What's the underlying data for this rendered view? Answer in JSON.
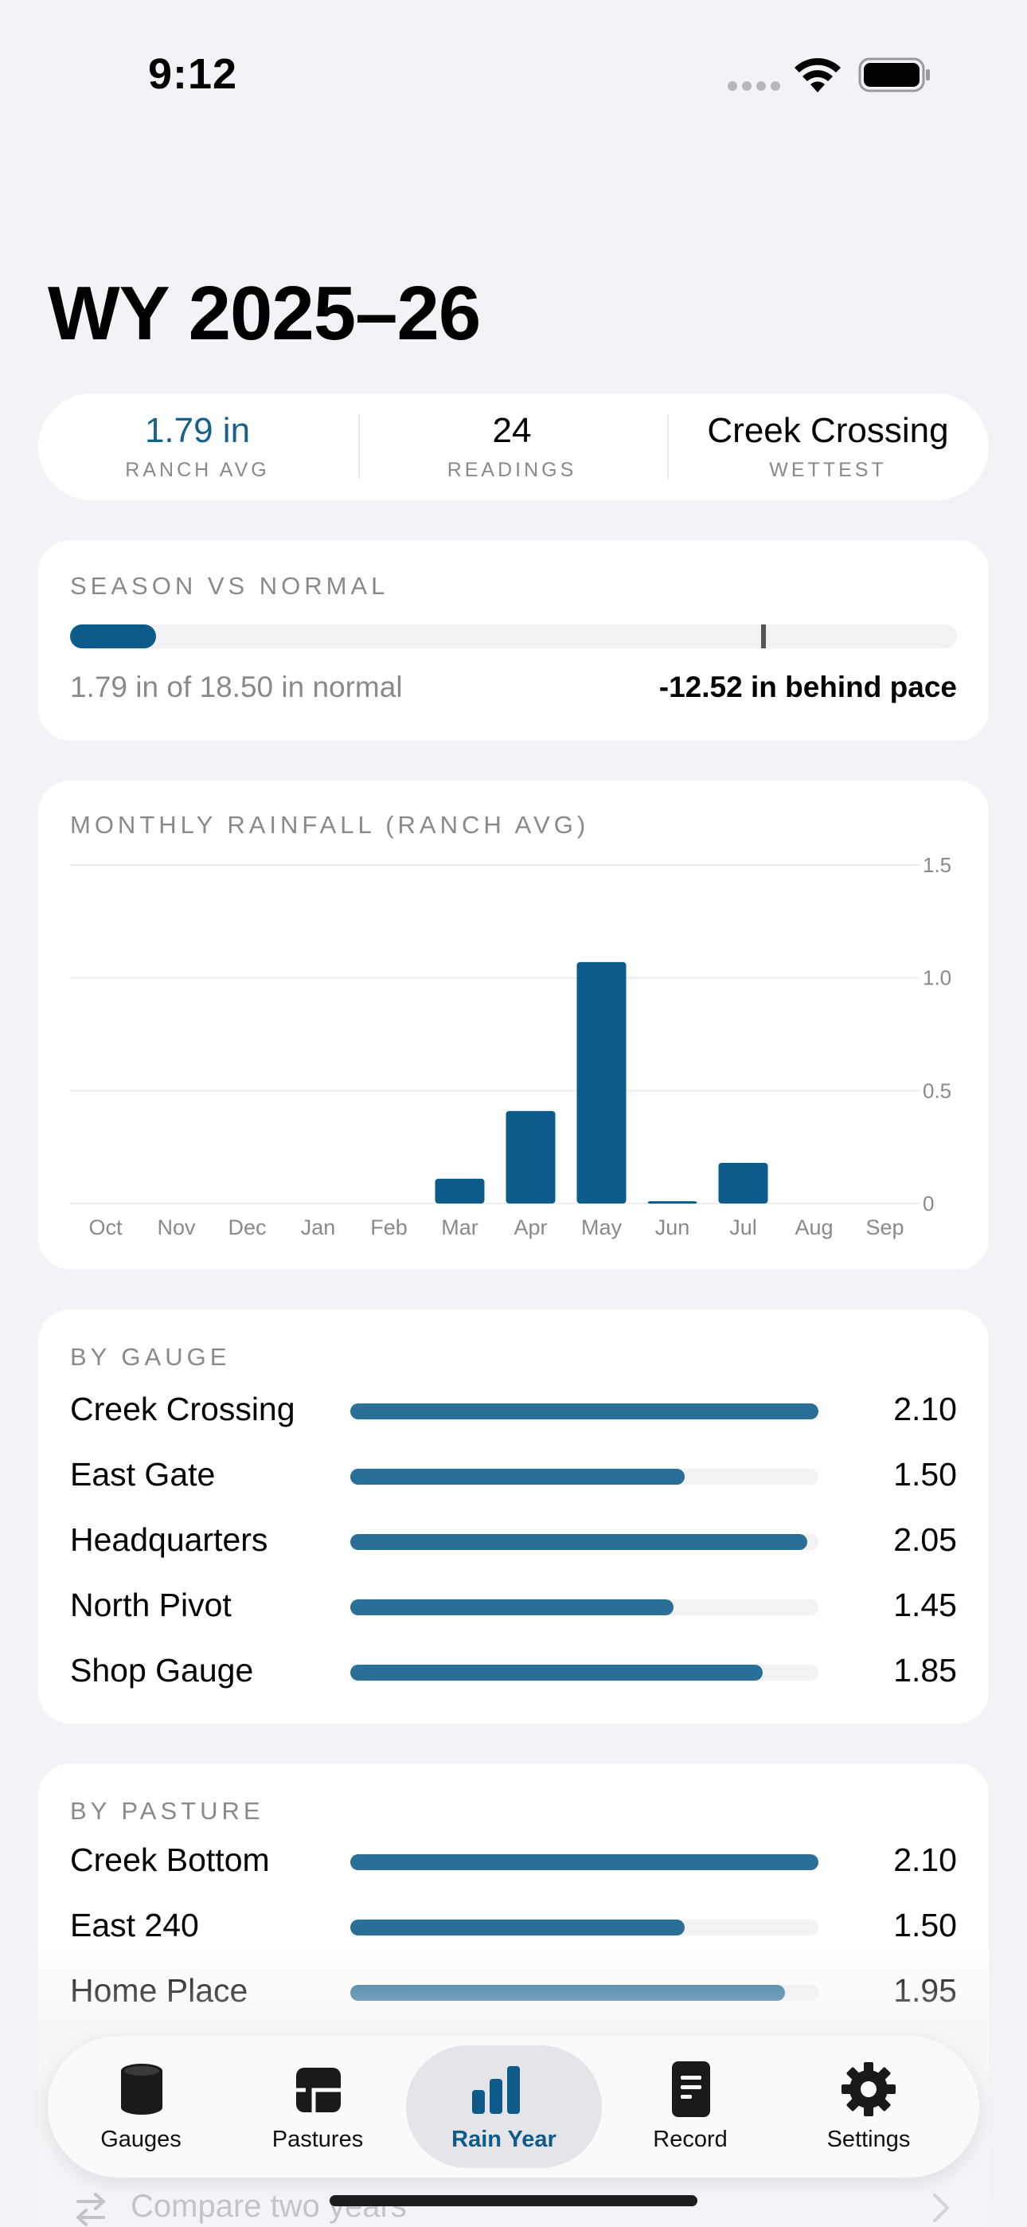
{
  "status_bar": {
    "time": "9:12"
  },
  "title": "WY 2025–26",
  "summary": {
    "ranch_avg_value": "1.79 in",
    "ranch_avg_label": "RANCH AVG",
    "readings_value": "24",
    "readings_label": "READINGS",
    "wettest_value": "Creek Crossing",
    "wettest_label": "WETTEST"
  },
  "season": {
    "heading": "SEASON VS NORMAL",
    "progress_fraction": 0.097,
    "pace_marker_fraction": 0.779,
    "detail": "1.79 in of 18.50 in normal",
    "pace": "-12.52 in behind pace"
  },
  "monthly": {
    "heading": "MONTHLY RAINFALL (RANCH AVG)"
  },
  "chart_data": {
    "type": "bar",
    "title": "MONTHLY RAINFALL (RANCH AVG)",
    "categories": [
      "Oct",
      "Nov",
      "Dec",
      "Jan",
      "Feb",
      "Mar",
      "Apr",
      "May",
      "Jun",
      "Jul",
      "Aug",
      "Sep"
    ],
    "values": [
      0,
      0,
      0,
      0,
      0,
      0.11,
      0.41,
      1.07,
      0.01,
      0.18,
      0,
      0
    ],
    "ylim": [
      0,
      1.5
    ],
    "yticks": [
      "0",
      "0.5",
      "1.0",
      "1.5"
    ],
    "ytick_values": [
      0,
      0.5,
      1.0,
      1.5
    ],
    "grid": true,
    "bar_color": "#0c5b8a"
  },
  "by_gauge": {
    "heading": "BY GAUGE",
    "max": 2.1,
    "rows": [
      {
        "label": "Creek Crossing",
        "value": "2.10",
        "amount": 2.1
      },
      {
        "label": "East Gate",
        "value": "1.50",
        "amount": 1.5
      },
      {
        "label": "Headquarters",
        "value": "2.05",
        "amount": 2.05
      },
      {
        "label": "North Pivot",
        "value": "1.45",
        "amount": 1.45
      },
      {
        "label": "Shop Gauge",
        "value": "1.85",
        "amount": 1.85
      }
    ]
  },
  "by_pasture": {
    "heading": "BY PASTURE",
    "max": 2.1,
    "rows": [
      {
        "label": "Creek Bottom",
        "value": "2.10",
        "amount": 2.1
      },
      {
        "label": "East 240",
        "value": "1.50",
        "amount": 1.5
      },
      {
        "label": "Home Place",
        "value": "1.95",
        "amount": 1.95
      }
    ]
  },
  "compare": {
    "label": "Compare two years"
  },
  "tabs": [
    {
      "label": "Gauges",
      "icon": "gauge-cylinder-icon"
    },
    {
      "label": "Pastures",
      "icon": "pastures-map-icon"
    },
    {
      "label": "Rain Year",
      "icon": "bar-chart-icon",
      "active": true
    },
    {
      "label": "Record",
      "icon": "record-document-icon"
    },
    {
      "label": "Settings",
      "icon": "gear-icon"
    }
  ],
  "colors": {
    "accent": "#0c5b8a",
    "gauge_bar": "#2a6f98",
    "background": "#f2f2f7"
  }
}
